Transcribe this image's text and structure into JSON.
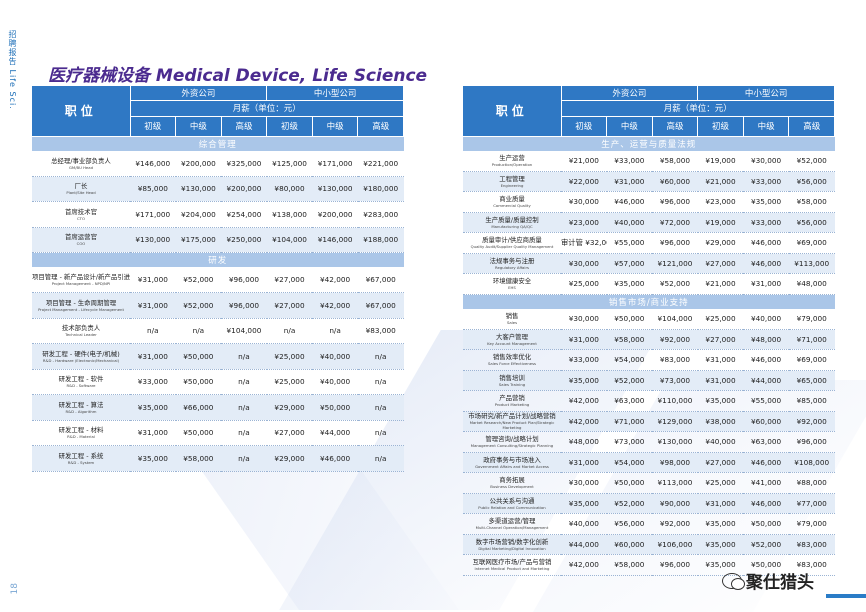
{
  "side_label": "招聘报告 Life Sci.",
  "page_number": "18",
  "title": "医疗器械设备 Medical Device, Life Science",
  "footer": {
    "brand": "聚仕猎头",
    "icon": "wechat-icon"
  },
  "colors": {
    "header": "#2f78c4",
    "section": "#aac6e8",
    "alt_row": "#e3ecf7",
    "title": "#4b2b8f"
  },
  "header": {
    "role": "职位",
    "foreign": "外资公司",
    "sme": "中小型公司",
    "salary": "月薪（单位：元）",
    "levels": [
      "初级",
      "中级",
      "高级",
      "初级",
      "中级",
      "高级"
    ]
  },
  "left_table": {
    "sections": [
      {
        "title": "综合管理",
        "rows": [
          {
            "cn": "总经理/事业部负责人",
            "en": "GM/BU Head",
            "v": [
              "¥146,000",
              "¥200,000",
              "¥325,000",
              "¥125,000",
              "¥171,000",
              "¥221,000"
            ]
          },
          {
            "cn": "厂长",
            "en": "Plant/Site Head",
            "v": [
              "¥85,000",
              "¥130,000",
              "¥200,000",
              "¥80,000",
              "¥130,000",
              "¥180,000"
            ]
          },
          {
            "cn": "首席技术官",
            "en": "CTO",
            "v": [
              "¥171,000",
              "¥204,000",
              "¥254,000",
              "¥138,000",
              "¥200,000",
              "¥283,000"
            ]
          },
          {
            "cn": "首席运营官",
            "en": "COO",
            "v": [
              "¥130,000",
              "¥175,000",
              "¥250,000",
              "¥104,000",
              "¥146,000",
              "¥188,000"
            ]
          }
        ]
      },
      {
        "title": "研发",
        "rows": [
          {
            "cn": "项目管理 - 新产品设计/新产品引进",
            "en": "Project Management - NPD/NPI",
            "v": [
              "¥31,000",
              "¥52,000",
              "¥96,000",
              "¥27,000",
              "¥42,000",
              "¥67,000"
            ]
          },
          {
            "cn": "项目管理 - 生命周期管理",
            "en": "Project Management - Lifecycle Management",
            "v": [
              "¥31,000",
              "¥52,000",
              "¥96,000",
              "¥27,000",
              "¥42,000",
              "¥67,000"
            ]
          },
          {
            "cn": "技术部负责人",
            "en": "Technical Leader",
            "v": [
              "n/a",
              "n/a",
              "¥104,000",
              "n/a",
              "n/a",
              "¥83,000"
            ]
          },
          {
            "cn": "研发工程 - 硬件(电子/机械)",
            "en": "R&D - Hardware (Electronic/Mechanical)",
            "v": [
              "¥31,000",
              "¥50,000",
              "n/a",
              "¥25,000",
              "¥40,000",
              "n/a"
            ]
          },
          {
            "cn": "研发工程 - 软件",
            "en": "R&D - Software",
            "v": [
              "¥33,000",
              "¥50,000",
              "n/a",
              "¥25,000",
              "¥40,000",
              "n/a"
            ]
          },
          {
            "cn": "研发工程 - 算法",
            "en": "R&D - Algorithm",
            "v": [
              "¥35,000",
              "¥66,000",
              "n/a",
              "¥29,000",
              "¥50,000",
              "n/a"
            ]
          },
          {
            "cn": "研发工程 - 材料",
            "en": "R&D - Material",
            "v": [
              "¥31,000",
              "¥50,000",
              "n/a",
              "¥27,000",
              "¥44,000",
              "n/a"
            ]
          },
          {
            "cn": "研发工程 - 系统",
            "en": "R&D - System",
            "v": [
              "¥35,000",
              "¥58,000",
              "n/a",
              "¥29,000",
              "¥46,000",
              "n/a"
            ]
          }
        ]
      }
    ]
  },
  "right_table": {
    "sections": [
      {
        "title": "生产、运营与质量法规",
        "rows": [
          {
            "cn": "生产运营",
            "en": "Production/Operation",
            "v": [
              "¥21,000",
              "¥33,000",
              "¥58,000",
              "¥19,000",
              "¥30,000",
              "¥52,000"
            ]
          },
          {
            "cn": "工程管理",
            "en": "Engineering",
            "v": [
              "¥22,000",
              "¥31,000",
              "¥60,000",
              "¥21,000",
              "¥33,000",
              "¥56,000"
            ]
          },
          {
            "cn": "商业质量",
            "en": "Commercial Quality",
            "v": [
              "¥30,000",
              "¥46,000",
              "¥96,000",
              "¥23,000",
              "¥35,000",
              "¥58,000"
            ]
          },
          {
            "cn": "生产质量/质量控制",
            "en": "Manufacturing QA/QC",
            "v": [
              "¥23,000",
              "¥40,000",
              "¥72,000",
              "¥19,000",
              "¥33,000",
              "¥56,000"
            ]
          },
          {
            "cn": "质量审计/供应商质量",
            "en": "Quality Audit/Supplier Quality Management",
            "v": [
              "审计管 ¥32,000",
              "¥55,000",
              "¥96,000",
              "¥29,000",
              "¥46,000",
              "¥69,000"
            ]
          },
          {
            "cn": "法规事务与注册",
            "en": "Regulatory Affairs",
            "v": [
              "¥30,000",
              "¥57,000",
              "¥121,000",
              "¥27,000",
              "¥46,000",
              "¥113,000"
            ]
          },
          {
            "cn": "环境健康安全",
            "en": "EHS",
            "v": [
              "¥25,000",
              "¥35,000",
              "¥52,000",
              "¥21,000",
              "¥31,000",
              "¥48,000"
            ]
          }
        ]
      },
      {
        "title": "销售市场/商业支持",
        "rows": [
          {
            "cn": "销售",
            "en": "Sales",
            "v": [
              "¥30,000",
              "¥50,000",
              "¥104,000",
              "¥25,000",
              "¥40,000",
              "¥79,000"
            ]
          },
          {
            "cn": "大客户管理",
            "en": "Key Account Management",
            "v": [
              "¥31,000",
              "¥58,000",
              "¥92,000",
              "¥27,000",
              "¥48,000",
              "¥71,000"
            ]
          },
          {
            "cn": "销售效率优化",
            "en": "Sales Force Effectiveness",
            "v": [
              "¥33,000",
              "¥54,000",
              "¥83,000",
              "¥31,000",
              "¥46,000",
              "¥69,000"
            ]
          },
          {
            "cn": "销售培训",
            "en": "Sales Training",
            "v": [
              "¥35,000",
              "¥52,000",
              "¥73,000",
              "¥31,000",
              "¥44,000",
              "¥65,000"
            ]
          },
          {
            "cn": "产品营销",
            "en": "Product Marketing",
            "v": [
              "¥42,000",
              "¥63,000",
              "¥110,000",
              "¥35,000",
              "¥55,000",
              "¥85,000"
            ]
          },
          {
            "cn": "市场研究/新产品计划/战略营销",
            "en": "Market Research/New Product Plan/Strategic Marketing",
            "v": [
              "¥42,000",
              "¥71,000",
              "¥129,000",
              "¥38,000",
              "¥60,000",
              "¥92,000"
            ]
          },
          {
            "cn": "管理咨询/战略计划",
            "en": "Management Consulting/Strategic Planning",
            "v": [
              "¥48,000",
              "¥73,000",
              "¥130,000",
              "¥40,000",
              "¥63,000",
              "¥96,000"
            ]
          },
          {
            "cn": "政府事务与市场准入",
            "en": "Government Affairs and Market Access",
            "v": [
              "¥31,000",
              "¥54,000",
              "¥98,000",
              "¥27,000",
              "¥46,000",
              "¥108,000"
            ]
          },
          {
            "cn": "商务拓展",
            "en": "Business Development",
            "v": [
              "¥30,000",
              "¥50,000",
              "¥113,000",
              "¥25,000",
              "¥41,000",
              "¥88,000"
            ]
          },
          {
            "cn": "公共关系与沟通",
            "en": "Public Relation and Communication",
            "v": [
              "¥35,000",
              "¥52,000",
              "¥90,000",
              "¥31,000",
              "¥46,000",
              "¥77,000"
            ]
          },
          {
            "cn": "多渠道运营/管理",
            "en": "Multi-Channel Operation/Management",
            "v": [
              "¥40,000",
              "¥56,000",
              "¥92,000",
              "¥35,000",
              "¥50,000",
              "¥79,000"
            ]
          },
          {
            "cn": "数字市场营销/数字化创新",
            "en": "Digital Marketing/Digital Innovation",
            "v": [
              "¥44,000",
              "¥60,000",
              "¥106,000",
              "¥35,000",
              "¥52,000",
              "¥83,000"
            ]
          },
          {
            "cn": "互联网医疗市场/产品与营销",
            "en": "Internet Medical Product and Marketing",
            "v": [
              "¥42,000",
              "¥58,000",
              "¥96,000",
              "¥35,000",
              "¥50,000",
              "¥83,000"
            ]
          }
        ]
      }
    ]
  }
}
